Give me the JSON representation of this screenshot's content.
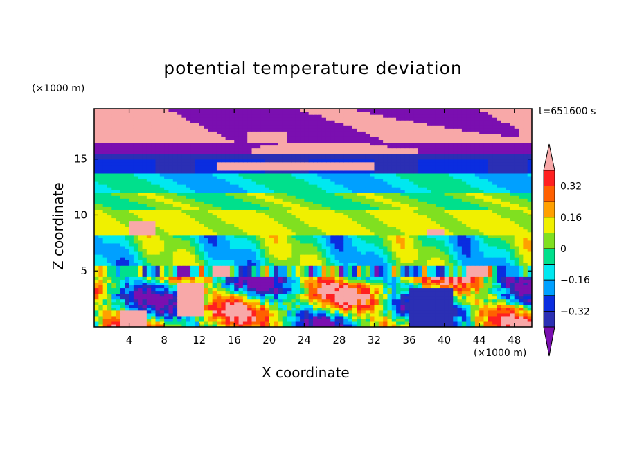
{
  "chart_data": {
    "type": "heatmap",
    "title": "potential temperature deviation",
    "xlabel": "X coordinate",
    "ylabel": "Z coordinate",
    "x_unit": "(×1000 m)",
    "z_unit": "(×1000 m)",
    "time_label": "t=651600 s",
    "xlim": [
      0,
      50
    ],
    "ylim": [
      0,
      19.5
    ],
    "x_ticks": [
      4,
      8,
      12,
      16,
      20,
      24,
      28,
      32,
      36,
      40,
      44,
      48
    ],
    "y_ticks": [
      5,
      10,
      15
    ],
    "colorbar": {
      "levels": [
        -0.4,
        -0.32,
        -0.24,
        -0.16,
        -0.08,
        0,
        0.08,
        0.16,
        0.24,
        0.32,
        0.4
      ],
      "tick_labels": [
        "0.32",
        "0.16",
        "0",
        "−0.16",
        "−0.32"
      ],
      "tick_values": [
        0.32,
        0.16,
        0,
        -0.16,
        -0.32
      ],
      "colors": [
        "#7a0fb0",
        "#2b2fb4",
        "#0a2de0",
        "#00a0ff",
        "#00e8f0",
        "#00e08c",
        "#80e020",
        "#f0f000",
        "#ffa000",
        "#ff6000",
        "#ff2020",
        "#f8a8a8"
      ]
    },
    "grid": false,
    "legend": "right"
  }
}
